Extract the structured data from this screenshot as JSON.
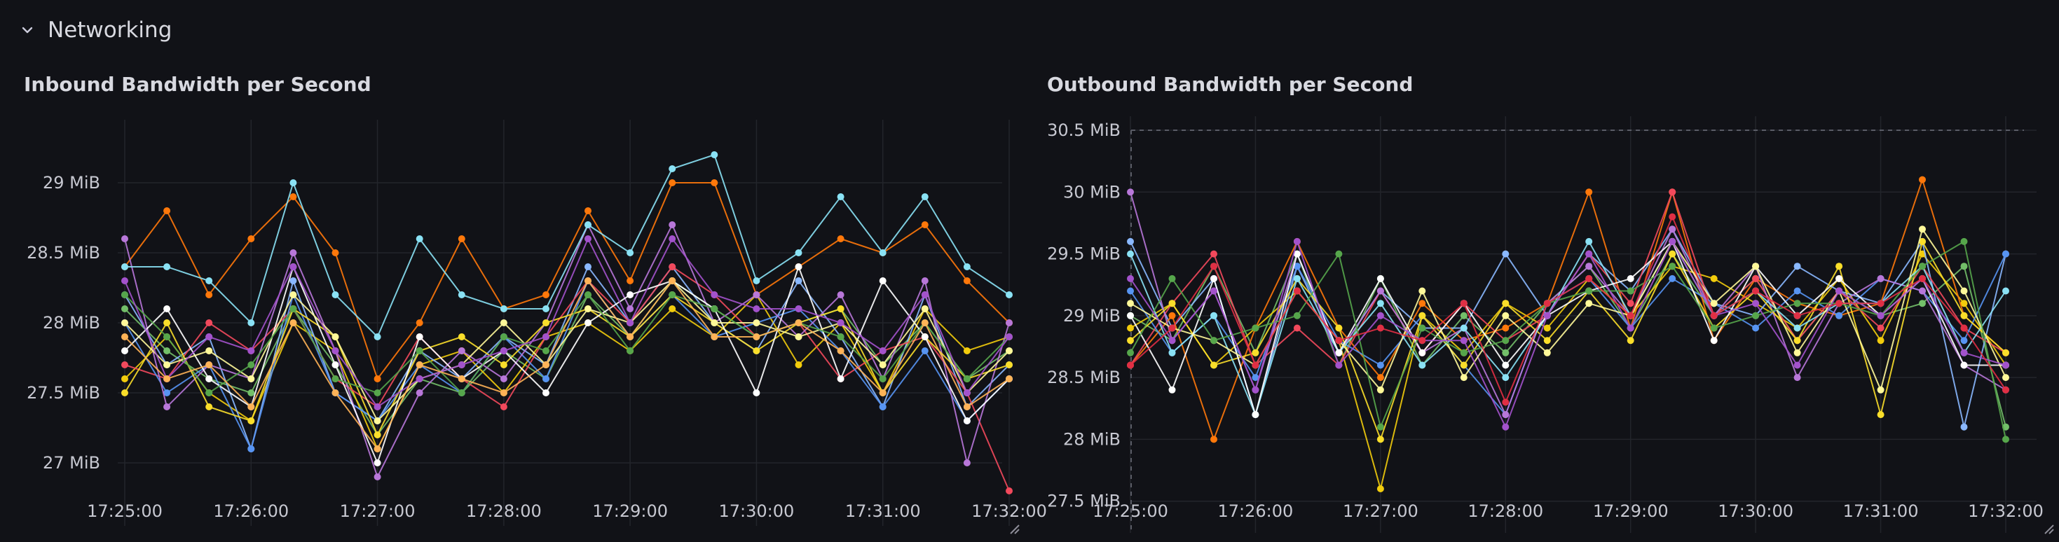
{
  "row": {
    "title": "Networking",
    "collapse_icon": "chevron-down-icon"
  },
  "theme": {
    "background": "#111217",
    "grid": "#24262d",
    "text": "#c7c8d1"
  },
  "panels": [
    {
      "title": "Inbound Bandwidth per Second",
      "y_ticks": [
        "29 MiB",
        "28.5 MiB",
        "28 MiB",
        "27.5 MiB",
        "27 MiB"
      ],
      "x_ticks": [
        "17:25:00",
        "17:26:00",
        "17:27:00",
        "17:28:00",
        "17:29:00",
        "17:30:00",
        "17:31:00",
        "17:32:00"
      ]
    },
    {
      "title": "Outbound Bandwidth per Second",
      "y_ticks": [
        "30.5 MiB",
        "30 MiB",
        "29.5 MiB",
        "29 MiB",
        "28.5 MiB",
        "28 MiB",
        "27.5 MiB"
      ],
      "x_ticks": [
        "17:25:00",
        "17:26:00",
        "17:27:00",
        "17:28:00",
        "17:29:00",
        "17:30:00",
        "17:31:00",
        "17:32:00"
      ]
    }
  ],
  "chart_data": [
    {
      "type": "line",
      "title": "Inbound Bandwidth per Second",
      "xlabel": "",
      "ylabel": "",
      "x": [
        "17:25:00",
        "17:25:20",
        "17:25:40",
        "17:26:00",
        "17:26:20",
        "17:26:40",
        "17:27:00",
        "17:27:20",
        "17:27:40",
        "17:28:00",
        "17:28:20",
        "17:28:40",
        "17:29:00",
        "17:29:20",
        "17:29:40",
        "17:30:00",
        "17:30:20",
        "17:30:40",
        "17:31:00",
        "17:31:20",
        "17:31:40",
        "17:32:00"
      ],
      "ylim": [
        26.6,
        29.35
      ],
      "y_unit": "MiB",
      "grid": true,
      "legend": "none",
      "series": [
        {
          "color": "#73bf69",
          "values": [
            28.1,
            27.8,
            27.6,
            27.5,
            28.1,
            27.7,
            27.2,
            27.6,
            27.5,
            27.8,
            27.6,
            28.2,
            27.9,
            28.3,
            28.1,
            27.9,
            28.0,
            28.1,
            27.7,
            28.0,
            27.6,
            27.8
          ]
        },
        {
          "color": "#f2cc0c",
          "values": [
            27.6,
            27.9,
            27.5,
            27.3,
            28.0,
            27.8,
            27.1,
            27.7,
            27.8,
            27.5,
            27.9,
            28.0,
            27.8,
            28.1,
            27.9,
            28.2,
            27.7,
            28.0,
            27.5,
            28.1,
            27.8,
            27.9
          ]
        },
        {
          "color": "#8ab8ff",
          "values": [
            28.2,
            27.7,
            27.9,
            27.1,
            28.3,
            27.5,
            27.3,
            27.8,
            27.6,
            27.9,
            27.7,
            28.4,
            28.0,
            28.4,
            28.0,
            27.8,
            28.3,
            27.9,
            27.4,
            28.2,
            27.4,
            27.7
          ]
        },
        {
          "color": "#ff780a",
          "values": [
            28.4,
            28.8,
            28.2,
            28.6,
            28.9,
            28.5,
            27.6,
            28.0,
            28.6,
            28.1,
            28.2,
            28.8,
            28.3,
            29.0,
            29.0,
            28.2,
            28.4,
            28.6,
            28.5,
            28.7,
            28.3,
            28.0
          ]
        },
        {
          "color": "#f2495c",
          "values": [
            27.7,
            27.6,
            28.0,
            27.8,
            28.1,
            27.6,
            27.4,
            27.9,
            27.6,
            27.4,
            27.9,
            28.3,
            28.0,
            28.4,
            28.2,
            27.9,
            28.0,
            27.6,
            27.8,
            27.9,
            27.5,
            26.8
          ]
        },
        {
          "color": "#5794f2",
          "values": [
            28.0,
            27.5,
            27.7,
            27.1,
            28.2,
            27.5,
            27.3,
            27.7,
            27.5,
            27.9,
            27.6,
            28.3,
            27.9,
            28.2,
            27.9,
            28.0,
            28.1,
            27.8,
            27.4,
            27.8,
            27.3,
            27.6
          ]
        },
        {
          "color": "#b877d9",
          "values": [
            28.6,
            27.4,
            27.7,
            27.6,
            28.5,
            27.8,
            26.9,
            27.5,
            27.8,
            27.6,
            28.0,
            28.7,
            28.1,
            28.7,
            28.0,
            28.2,
            27.9,
            28.2,
            27.6,
            28.3,
            27.0,
            28.0
          ]
        },
        {
          "color": "#fade2a",
          "values": [
            27.5,
            28.0,
            27.4,
            27.3,
            28.1,
            27.9,
            27.2,
            27.8,
            27.9,
            27.7,
            28.0,
            28.1,
            27.9,
            28.2,
            28.0,
            27.8,
            28.0,
            28.1,
            27.5,
            27.9,
            27.6,
            27.7
          ]
        },
        {
          "color": "#8ae2f5",
          "values": [
            28.4,
            28.4,
            28.3,
            28.0,
            29.0,
            28.2,
            27.9,
            28.6,
            28.2,
            28.1,
            28.1,
            28.7,
            28.5,
            29.1,
            29.2,
            28.3,
            28.5,
            28.9,
            28.5,
            28.9,
            28.4,
            28.2
          ]
        },
        {
          "color": "#ffffff",
          "values": [
            27.8,
            28.1,
            27.6,
            27.4,
            28.4,
            27.7,
            27.0,
            27.9,
            27.6,
            27.8,
            27.5,
            28.0,
            28.2,
            28.3,
            28.1,
            27.5,
            28.4,
            27.6,
            28.3,
            27.9,
            27.3,
            27.6
          ]
        },
        {
          "color": "#fff899",
          "values": [
            28.0,
            27.7,
            27.8,
            27.6,
            28.2,
            27.9,
            27.3,
            27.6,
            27.7,
            28.0,
            27.7,
            28.1,
            28.0,
            28.3,
            28.0,
            28.0,
            27.9,
            28.0,
            27.7,
            28.1,
            27.5,
            27.8
          ]
        },
        {
          "color": "#56a64b",
          "values": [
            28.2,
            27.9,
            27.5,
            27.7,
            28.1,
            27.6,
            27.5,
            27.8,
            27.5,
            27.9,
            27.8,
            28.2,
            27.8,
            28.2,
            28.1,
            27.9,
            28.0,
            27.9,
            27.6,
            28.0,
            27.6,
            27.9
          ]
        },
        {
          "color": "#a352cc",
          "values": [
            28.3,
            27.6,
            27.9,
            27.8,
            28.4,
            27.8,
            27.4,
            27.6,
            27.7,
            27.8,
            27.9,
            28.6,
            28.0,
            28.6,
            28.2,
            28.1,
            28.1,
            28.0,
            27.8,
            28.2,
            27.5,
            27.9
          ]
        },
        {
          "color": "#ffb357",
          "values": [
            27.9,
            27.6,
            27.7,
            27.4,
            28.0,
            27.5,
            27.1,
            27.7,
            27.6,
            27.5,
            27.7,
            28.3,
            27.9,
            28.3,
            27.9,
            27.9,
            28.0,
            27.8,
            27.5,
            28.0,
            27.4,
            27.6
          ]
        }
      ]
    },
    {
      "type": "line",
      "title": "Outbound Bandwidth per Second",
      "xlabel": "",
      "ylabel": "",
      "x": [
        "17:25:00",
        "17:25:20",
        "17:25:40",
        "17:26:00",
        "17:26:20",
        "17:26:40",
        "17:27:00",
        "17:27:20",
        "17:27:40",
        "17:28:00",
        "17:28:20",
        "17:28:40",
        "17:29:00",
        "17:29:20",
        "17:29:40",
        "17:30:00",
        "17:30:20",
        "17:30:40",
        "17:31:00",
        "17:31:20",
        "17:31:40",
        "17:32:00"
      ],
      "ylim": [
        27.3,
        30.5
      ],
      "y_unit": "MiB",
      "grid": true,
      "threshold_line": 30.5,
      "legend": "none",
      "series": [
        {
          "color": "#73bf69",
          "values": [
            29.0,
            28.8,
            29.4,
            28.7,
            29.5,
            28.6,
            29.3,
            28.6,
            29.0,
            28.7,
            29.1,
            29.4,
            28.9,
            29.5,
            29.0,
            29.3,
            28.8,
            29.2,
            29.0,
            29.1,
            29.4,
            28.1
          ]
        },
        {
          "color": "#f2cc0c",
          "values": [
            28.9,
            29.1,
            28.6,
            28.9,
            29.2,
            28.8,
            27.6,
            29.0,
            28.7,
            29.1,
            28.9,
            29.3,
            29.0,
            29.4,
            29.3,
            29.1,
            28.9,
            29.3,
            28.8,
            29.5,
            29.1,
            28.6
          ]
        },
        {
          "color": "#8ab8ff",
          "values": [
            29.6,
            28.9,
            29.3,
            28.2,
            29.4,
            28.7,
            29.2,
            28.9,
            28.9,
            29.5,
            29.0,
            29.5,
            29.2,
            29.7,
            29.1,
            29.0,
            29.4,
            29.2,
            29.1,
            29.6,
            28.1,
            29.5
          ]
        },
        {
          "color": "#ff780a",
          "values": [
            28.6,
            29.0,
            28.0,
            28.9,
            29.6,
            28.9,
            28.5,
            29.1,
            28.8,
            28.9,
            29.1,
            30.0,
            28.9,
            30.0,
            28.8,
            29.3,
            29.1,
            29.0,
            29.1,
            30.1,
            29.0,
            28.7
          ]
        },
        {
          "color": "#f2495c",
          "values": [
            28.6,
            29.1,
            29.5,
            28.6,
            28.9,
            28.6,
            29.2,
            28.7,
            29.1,
            28.8,
            29.0,
            29.5,
            29.1,
            30.0,
            29.0,
            29.3,
            28.8,
            29.2,
            28.9,
            29.4,
            28.9,
            28.7
          ]
        },
        {
          "color": "#5794f2",
          "values": [
            29.2,
            28.7,
            29.0,
            28.5,
            29.4,
            28.8,
            28.6,
            29.0,
            28.6,
            28.2,
            29.1,
            29.3,
            28.9,
            29.3,
            29.1,
            28.9,
            29.2,
            29.0,
            29.3,
            29.2,
            28.8,
            29.5
          ]
        },
        {
          "color": "#b877d9",
          "values": [
            30.0,
            28.8,
            29.2,
            28.4,
            29.5,
            28.7,
            29.2,
            28.7,
            28.9,
            28.2,
            29.1,
            29.4,
            29.0,
            29.7,
            29.0,
            29.4,
            28.5,
            29.1,
            29.3,
            29.2,
            28.6,
            28.4
          ]
        },
        {
          "color": "#fade2a",
          "values": [
            28.8,
            29.1,
            28.6,
            28.7,
            29.3,
            28.9,
            28.0,
            29.0,
            28.6,
            29.1,
            28.8,
            29.2,
            28.8,
            29.5,
            28.9,
            29.2,
            28.8,
            29.4,
            28.2,
            29.6,
            29.0,
            28.7
          ]
        },
        {
          "color": "#8ae2f5",
          "values": [
            29.5,
            28.7,
            29.0,
            28.2,
            29.3,
            28.7,
            29.1,
            28.6,
            28.9,
            28.5,
            29.0,
            29.6,
            29.0,
            29.6,
            29.0,
            29.2,
            28.9,
            29.1,
            29.1,
            29.4,
            28.7,
            29.2
          ]
        },
        {
          "color": "#ffffff",
          "values": [
            29.0,
            28.4,
            29.3,
            28.2,
            29.5,
            28.7,
            29.3,
            28.7,
            29.1,
            28.6,
            29.0,
            29.2,
            29.3,
            29.6,
            28.8,
            29.4,
            29.0,
            29.3,
            29.0,
            29.3,
            28.6,
            28.6
          ]
        },
        {
          "color": "#fff899",
          "values": [
            29.1,
            28.9,
            28.8,
            28.6,
            29.2,
            28.8,
            28.4,
            29.2,
            28.5,
            29.0,
            28.7,
            29.1,
            29.0,
            29.6,
            29.1,
            29.4,
            28.7,
            29.2,
            28.4,
            29.7,
            29.2,
            28.5
          ]
        },
        {
          "color": "#56a64b",
          "values": [
            28.7,
            29.3,
            28.8,
            28.9,
            29.0,
            29.5,
            28.1,
            28.9,
            28.7,
            28.8,
            29.1,
            29.2,
            29.2,
            29.4,
            28.9,
            29.0,
            29.1,
            29.1,
            29.0,
            29.4,
            29.6,
            28.0
          ]
        },
        {
          "color": "#a352cc",
          "values": [
            29.3,
            28.8,
            29.2,
            28.4,
            29.6,
            28.6,
            29.0,
            28.8,
            28.8,
            28.1,
            29.0,
            29.5,
            28.9,
            29.6,
            29.0,
            29.1,
            28.6,
            29.2,
            29.0,
            29.3,
            28.7,
            28.6
          ]
        },
        {
          "color": "#e02f44",
          "values": [
            28.6,
            28.9,
            29.4,
            28.6,
            29.2,
            28.8,
            28.9,
            28.8,
            29.1,
            28.3,
            29.1,
            29.3,
            29.0,
            29.8,
            29.0,
            29.2,
            29.0,
            29.1,
            29.1,
            29.3,
            28.9,
            28.4
          ]
        }
      ]
    }
  ]
}
